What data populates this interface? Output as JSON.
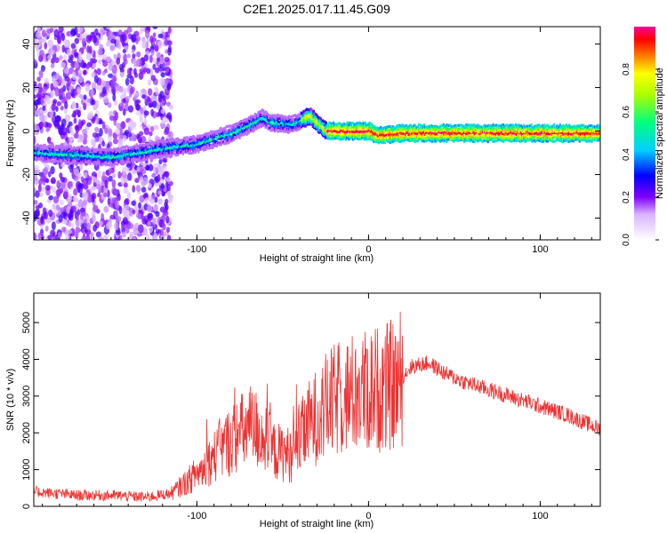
{
  "title": "C2E1.2025.017.11.45.G09",
  "colors": {
    "snr_line": "#ee3333",
    "frame": "#000000"
  },
  "chart_data": [
    {
      "type": "heatmap",
      "xlabel": "Height of straight line (km)",
      "ylabel": "Frequency (Hz)",
      "xlim": [
        -195,
        135
      ],
      "ylim": [
        -50,
        48
      ],
      "xticks": [
        -100,
        0,
        100
      ],
      "yticks": [
        -40,
        -20,
        0,
        20,
        40
      ],
      "colorbar": {
        "label": "Normalized spectral amplitude",
        "range": [
          0,
          1
        ],
        "ticks": [
          "0.0",
          "0.2",
          "0.4",
          "0.6",
          "0.8"
        ]
      },
      "ridge": [
        {
          "x": -195,
          "y": -10
        },
        {
          "x": -150,
          "y": -12
        },
        {
          "x": -120,
          "y": -8
        },
        {
          "x": -100,
          "y": -6
        },
        {
          "x": -80,
          "y": -1
        },
        {
          "x": -62,
          "y": 6
        },
        {
          "x": -58,
          "y": 4
        },
        {
          "x": -45,
          "y": 3
        },
        {
          "x": -35,
          "y": 7
        },
        {
          "x": -25,
          "y": 0
        },
        {
          "x": 0,
          "y": 0
        },
        {
          "x": 5,
          "y": -2
        },
        {
          "x": 20,
          "y": -1
        },
        {
          "x": 60,
          "y": -1
        },
        {
          "x": 135,
          "y": -1
        }
      ]
    },
    {
      "type": "line",
      "xlabel": "Height of straight line (km)",
      "ylabel": "SNR (10 * v/v)",
      "xlim": [
        -195,
        135
      ],
      "ylim": [
        0,
        5800
      ],
      "xticks": [
        -100,
        0,
        100
      ],
      "yticks": [
        0,
        1000,
        2000,
        3000,
        4000,
        5000
      ],
      "series": [
        {
          "color": "#ee3333",
          "x": [
            -195,
            -170,
            -150,
            -130,
            -115,
            -105,
            -95,
            -85,
            -75,
            -65,
            -55,
            -45,
            -35,
            -25,
            -15,
            -5,
            5,
            15,
            25,
            35,
            45,
            55,
            75,
            95,
            115,
            135
          ],
          "y": [
            400,
            300,
            300,
            250,
            350,
            700,
            1100,
            1600,
            2000,
            2100,
            1500,
            1400,
            2200,
            2700,
            3000,
            3100,
            3200,
            3300,
            3800,
            3900,
            3600,
            3400,
            3100,
            2800,
            2500,
            2100
          ]
        }
      ]
    }
  ]
}
